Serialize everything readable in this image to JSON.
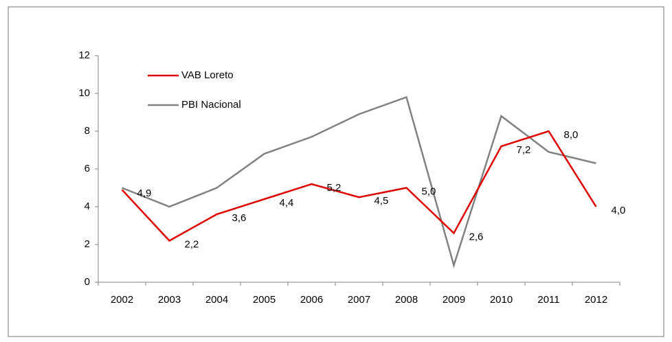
{
  "chart_data": {
    "type": "line",
    "categories": [
      "2002",
      "2003",
      "2004",
      "2005",
      "2006",
      "2007",
      "2008",
      "2009",
      "2010",
      "2011",
      "2012"
    ],
    "series": [
      {
        "name": "VAB Loreto",
        "color": "#e00000",
        "values": [
          4.9,
          2.2,
          3.6,
          4.4,
          5.2,
          4.5,
          5.0,
          2.6,
          7.2,
          8.0,
          4.0
        ],
        "value_labels": [
          "4,9",
          "2,2",
          "3,6",
          "4,4",
          "5,2",
          "4,5",
          "5,0",
          "2,6",
          "7,2",
          "8,0",
          "4,0"
        ]
      },
      {
        "name": "PBI Nacional",
        "color": "#808080",
        "values": [
          5.0,
          4.0,
          5.0,
          6.8,
          7.7,
          8.9,
          9.8,
          0.9,
          8.8,
          6.9,
          6.3
        ]
      }
    ],
    "ylim": [
      0,
      12
    ],
    "yticks": [
      0,
      2,
      4,
      6,
      8,
      10,
      12
    ],
    "legend": "top-left"
  }
}
